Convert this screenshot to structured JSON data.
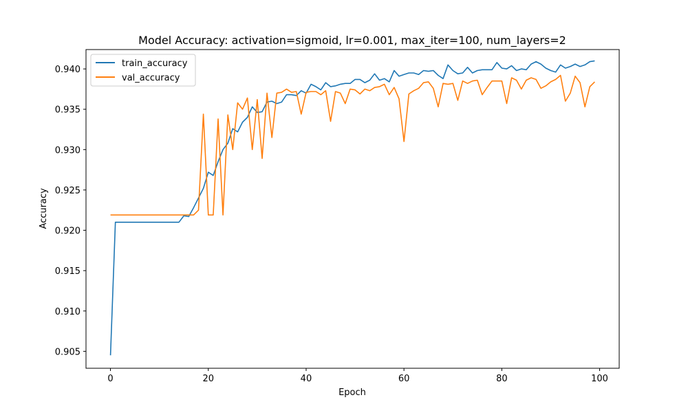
{
  "chart_data": {
    "type": "line",
    "title": "Model Accuracy: activation=sigmoid, lr=0.001, max_iter=100, num_layers=2",
    "xlabel": "Epoch",
    "ylabel": "Accuracy",
    "xlim": [
      -5,
      104
    ],
    "ylim": [
      0.9029,
      0.9424
    ],
    "xticks": [
      0,
      20,
      40,
      60,
      80,
      100
    ],
    "yticks": [
      0.905,
      0.91,
      0.915,
      0.92,
      0.925,
      0.93,
      0.935,
      0.94
    ],
    "xtick_labels": [
      "0",
      "20",
      "40",
      "60",
      "80",
      "100"
    ],
    "ytick_labels": [
      "0.905",
      "0.910",
      "0.915",
      "0.920",
      "0.925",
      "0.930",
      "0.935",
      "0.940"
    ],
    "grid": false,
    "legend_position": "top-left",
    "series": [
      {
        "name": "train_accuracy",
        "color": "#1f77b4",
        "x": [
          0,
          1,
          2,
          3,
          4,
          5,
          6,
          7,
          8,
          9,
          10,
          11,
          12,
          13,
          14,
          15,
          16,
          17,
          18,
          19,
          20,
          21,
          22,
          23,
          24,
          25,
          26,
          27,
          28,
          29,
          30,
          31,
          32,
          33,
          34,
          35,
          36,
          37,
          38,
          39,
          40,
          41,
          42,
          43,
          44,
          45,
          46,
          47,
          48,
          49,
          50,
          51,
          52,
          53,
          54,
          55,
          56,
          57,
          58,
          59,
          60,
          61,
          62,
          63,
          64,
          65,
          66,
          67,
          68,
          69,
          70,
          71,
          72,
          73,
          74,
          75,
          76,
          77,
          78,
          79,
          80,
          81,
          82,
          83,
          84,
          85,
          86,
          87,
          88,
          89,
          90,
          91,
          92,
          93,
          94,
          95,
          96,
          97,
          98,
          99
        ],
        "values": [
          0.9045,
          0.921,
          0.921,
          0.921,
          0.921,
          0.921,
          0.921,
          0.921,
          0.921,
          0.921,
          0.921,
          0.921,
          0.921,
          0.921,
          0.921,
          0.9218,
          0.9217,
          0.9228,
          0.924,
          0.9252,
          0.9272,
          0.9268,
          0.9285,
          0.93,
          0.9308,
          0.9326,
          0.9322,
          0.9334,
          0.934,
          0.9353,
          0.9346,
          0.9347,
          0.9359,
          0.936,
          0.9357,
          0.9359,
          0.9368,
          0.9368,
          0.9367,
          0.9373,
          0.937,
          0.9381,
          0.9378,
          0.9374,
          0.9383,
          0.9378,
          0.9379,
          0.9381,
          0.9382,
          0.9382,
          0.9387,
          0.9387,
          0.9383,
          0.9386,
          0.9394,
          0.9386,
          0.9388,
          0.9384,
          0.9398,
          0.9391,
          0.9393,
          0.9395,
          0.9395,
          0.9393,
          0.9398,
          0.9397,
          0.9398,
          0.9392,
          0.9388,
          0.9405,
          0.9398,
          0.9394,
          0.9395,
          0.9402,
          0.9395,
          0.9398,
          0.9399,
          0.9399,
          0.9399,
          0.9408,
          0.9401,
          0.94,
          0.9404,
          0.9398,
          0.94,
          0.9399,
          0.9406,
          0.9409,
          0.9406,
          0.9401,
          0.9398,
          0.9396,
          0.9405,
          0.9401,
          0.9403,
          0.9406,
          0.9403,
          0.9405,
          0.9409,
          0.941
        ]
      },
      {
        "name": "val_accuracy",
        "color": "#ff7f0e",
        "x": [
          0,
          1,
          2,
          3,
          4,
          5,
          6,
          7,
          8,
          9,
          10,
          11,
          12,
          13,
          14,
          15,
          16,
          17,
          18,
          19,
          20,
          21,
          22,
          23,
          24,
          25,
          26,
          27,
          28,
          29,
          30,
          31,
          32,
          33,
          34,
          35,
          36,
          37,
          38,
          39,
          40,
          41,
          42,
          43,
          44,
          45,
          46,
          47,
          48,
          49,
          50,
          51,
          52,
          53,
          54,
          55,
          56,
          57,
          58,
          59,
          60,
          61,
          62,
          63,
          64,
          65,
          66,
          67,
          68,
          69,
          70,
          71,
          72,
          73,
          74,
          75,
          76,
          77,
          78,
          79,
          80,
          81,
          82,
          83,
          84,
          85,
          86,
          87,
          88,
          89,
          90,
          91,
          92,
          93,
          94,
          95,
          96,
          97,
          98,
          99
        ],
        "values": [
          0.9219,
          0.9219,
          0.9219,
          0.9219,
          0.9219,
          0.9219,
          0.9219,
          0.9219,
          0.9219,
          0.9219,
          0.9219,
          0.9219,
          0.9219,
          0.9219,
          0.9219,
          0.9219,
          0.9219,
          0.9219,
          0.9225,
          0.9344,
          0.9219,
          0.9219,
          0.9338,
          0.9219,
          0.9343,
          0.93,
          0.9358,
          0.935,
          0.9364,
          0.93,
          0.9362,
          0.9289,
          0.937,
          0.9315,
          0.937,
          0.9371,
          0.9375,
          0.9371,
          0.9372,
          0.9344,
          0.9371,
          0.9372,
          0.9372,
          0.9368,
          0.9373,
          0.9335,
          0.9372,
          0.937,
          0.9357,
          0.9375,
          0.9374,
          0.9369,
          0.9375,
          0.9373,
          0.9377,
          0.9378,
          0.9381,
          0.9368,
          0.9377,
          0.9363,
          0.931,
          0.9369,
          0.9373,
          0.9376,
          0.9383,
          0.9384,
          0.9376,
          0.9353,
          0.9382,
          0.9381,
          0.9382,
          0.9361,
          0.9385,
          0.9382,
          0.9385,
          0.9386,
          0.9368,
          0.9377,
          0.9385,
          0.9385,
          0.9385,
          0.9357,
          0.9389,
          0.9386,
          0.9375,
          0.9386,
          0.9389,
          0.9387,
          0.9376,
          0.9379,
          0.9384,
          0.9387,
          0.9392,
          0.936,
          0.937,
          0.9391,
          0.9383,
          0.9353,
          0.9378,
          0.9384
        ]
      }
    ]
  }
}
